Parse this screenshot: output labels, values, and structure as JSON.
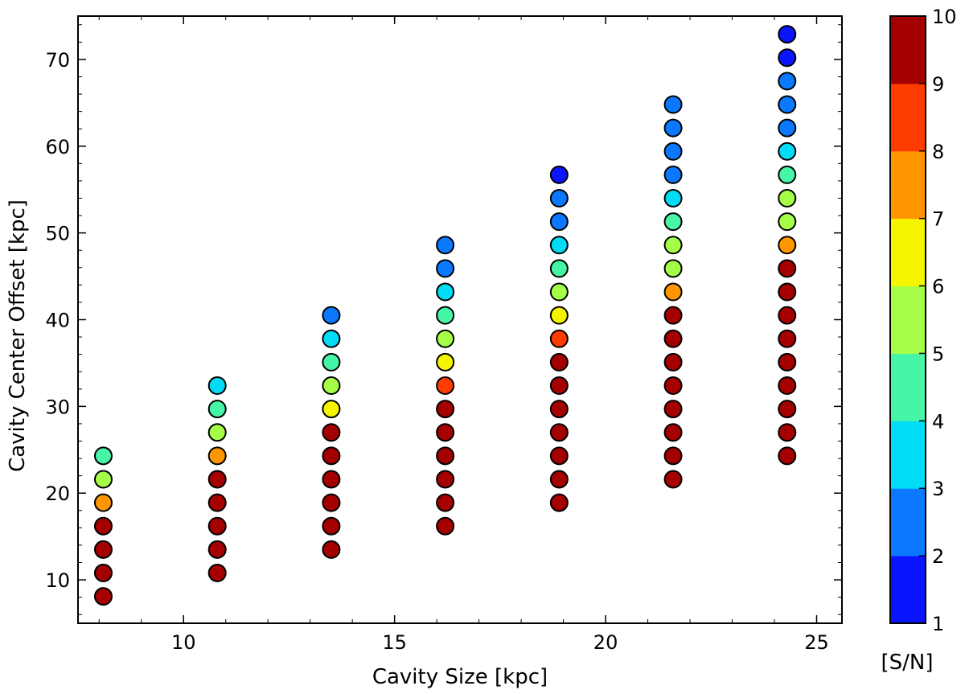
{
  "chart_data": {
    "type": "scatter",
    "xlabel": "Cavity Size [kpc]",
    "ylabel": "Cavity Center Offset [kpc]",
    "xlim": [
      7.5,
      25.6
    ],
    "ylim": [
      5,
      75
    ],
    "xticks": [
      10,
      15,
      20,
      25
    ],
    "yticks": [
      10,
      20,
      30,
      40,
      50,
      60,
      70
    ],
    "grid": false,
    "colorbar": {
      "label": "[S/N]",
      "range": [
        1,
        10
      ],
      "ticks": [
        1,
        2,
        3,
        4,
        5,
        6,
        7,
        8,
        9,
        10
      ],
      "colormap": "jet",
      "bands": [
        "#0a14ff",
        "#0a78ff",
        "#00dcf5",
        "#46f5a5",
        "#a5ff46",
        "#f5f500",
        "#ff9600",
        "#ff3c00",
        "#a50000"
      ]
    },
    "points": [
      {
        "x": 8.1,
        "y": 8.1,
        "sn": 10
      },
      {
        "x": 8.1,
        "y": 10.8,
        "sn": 10
      },
      {
        "x": 8.1,
        "y": 13.5,
        "sn": 10
      },
      {
        "x": 8.1,
        "y": 16.2,
        "sn": 10
      },
      {
        "x": 8.1,
        "y": 18.9,
        "sn": 7
      },
      {
        "x": 8.1,
        "y": 21.6,
        "sn": 5
      },
      {
        "x": 8.1,
        "y": 24.3,
        "sn": 4
      },
      {
        "x": 10.8,
        "y": 10.8,
        "sn": 10
      },
      {
        "x": 10.8,
        "y": 13.5,
        "sn": 10
      },
      {
        "x": 10.8,
        "y": 16.2,
        "sn": 10
      },
      {
        "x": 10.8,
        "y": 18.9,
        "sn": 10
      },
      {
        "x": 10.8,
        "y": 21.6,
        "sn": 10
      },
      {
        "x": 10.8,
        "y": 24.3,
        "sn": 7
      },
      {
        "x": 10.8,
        "y": 27.0,
        "sn": 5
      },
      {
        "x": 10.8,
        "y": 29.7,
        "sn": 4
      },
      {
        "x": 10.8,
        "y": 32.4,
        "sn": 3
      },
      {
        "x": 13.5,
        "y": 13.5,
        "sn": 10
      },
      {
        "x": 13.5,
        "y": 16.2,
        "sn": 10
      },
      {
        "x": 13.5,
        "y": 18.9,
        "sn": 10
      },
      {
        "x": 13.5,
        "y": 21.6,
        "sn": 10
      },
      {
        "x": 13.5,
        "y": 24.3,
        "sn": 10
      },
      {
        "x": 13.5,
        "y": 27.0,
        "sn": 9
      },
      {
        "x": 13.5,
        "y": 29.7,
        "sn": 6
      },
      {
        "x": 13.5,
        "y": 32.4,
        "sn": 5
      },
      {
        "x": 13.5,
        "y": 35.1,
        "sn": 4
      },
      {
        "x": 13.5,
        "y": 37.8,
        "sn": 3
      },
      {
        "x": 13.5,
        "y": 40.5,
        "sn": 2
      },
      {
        "x": 16.2,
        "y": 16.2,
        "sn": 10
      },
      {
        "x": 16.2,
        "y": 18.9,
        "sn": 10
      },
      {
        "x": 16.2,
        "y": 21.6,
        "sn": 10
      },
      {
        "x": 16.2,
        "y": 24.3,
        "sn": 10
      },
      {
        "x": 16.2,
        "y": 27.0,
        "sn": 10
      },
      {
        "x": 16.2,
        "y": 29.7,
        "sn": 10
      },
      {
        "x": 16.2,
        "y": 32.4,
        "sn": 8
      },
      {
        "x": 16.2,
        "y": 35.1,
        "sn": 6
      },
      {
        "x": 16.2,
        "y": 37.8,
        "sn": 5
      },
      {
        "x": 16.2,
        "y": 40.5,
        "sn": 4
      },
      {
        "x": 16.2,
        "y": 43.2,
        "sn": 3
      },
      {
        "x": 16.2,
        "y": 45.9,
        "sn": 2
      },
      {
        "x": 16.2,
        "y": 48.6,
        "sn": 2
      },
      {
        "x": 18.9,
        "y": 18.9,
        "sn": 10
      },
      {
        "x": 18.9,
        "y": 21.6,
        "sn": 10
      },
      {
        "x": 18.9,
        "y": 24.3,
        "sn": 10
      },
      {
        "x": 18.9,
        "y": 27.0,
        "sn": 10
      },
      {
        "x": 18.9,
        "y": 29.7,
        "sn": 10
      },
      {
        "x": 18.9,
        "y": 32.4,
        "sn": 10
      },
      {
        "x": 18.9,
        "y": 35.1,
        "sn": 10
      },
      {
        "x": 18.9,
        "y": 37.8,
        "sn": 8
      },
      {
        "x": 18.9,
        "y": 40.5,
        "sn": 6
      },
      {
        "x": 18.9,
        "y": 43.2,
        "sn": 5
      },
      {
        "x": 18.9,
        "y": 45.9,
        "sn": 4
      },
      {
        "x": 18.9,
        "y": 48.6,
        "sn": 3
      },
      {
        "x": 18.9,
        "y": 51.3,
        "sn": 2
      },
      {
        "x": 18.9,
        "y": 54.0,
        "sn": 2
      },
      {
        "x": 18.9,
        "y": 56.7,
        "sn": 1
      },
      {
        "x": 21.6,
        "y": 21.6,
        "sn": 10
      },
      {
        "x": 21.6,
        "y": 24.3,
        "sn": 10
      },
      {
        "x": 21.6,
        "y": 27.0,
        "sn": 10
      },
      {
        "x": 21.6,
        "y": 29.7,
        "sn": 10
      },
      {
        "x": 21.6,
        "y": 32.4,
        "sn": 10
      },
      {
        "x": 21.6,
        "y": 35.1,
        "sn": 10
      },
      {
        "x": 21.6,
        "y": 37.8,
        "sn": 10
      },
      {
        "x": 21.6,
        "y": 40.5,
        "sn": 9
      },
      {
        "x": 21.6,
        "y": 43.2,
        "sn": 7
      },
      {
        "x": 21.6,
        "y": 45.9,
        "sn": 5
      },
      {
        "x": 21.6,
        "y": 48.6,
        "sn": 5
      },
      {
        "x": 21.6,
        "y": 51.3,
        "sn": 4
      },
      {
        "x": 21.6,
        "y": 54.0,
        "sn": 3
      },
      {
        "x": 21.6,
        "y": 56.7,
        "sn": 2
      },
      {
        "x": 21.6,
        "y": 59.4,
        "sn": 2
      },
      {
        "x": 21.6,
        "y": 62.1,
        "sn": 2
      },
      {
        "x": 21.6,
        "y": 64.8,
        "sn": 2
      },
      {
        "x": 24.3,
        "y": 24.3,
        "sn": 10
      },
      {
        "x": 24.3,
        "y": 27.0,
        "sn": 10
      },
      {
        "x": 24.3,
        "y": 29.7,
        "sn": 10
      },
      {
        "x": 24.3,
        "y": 32.4,
        "sn": 10
      },
      {
        "x": 24.3,
        "y": 35.1,
        "sn": 10
      },
      {
        "x": 24.3,
        "y": 37.8,
        "sn": 10
      },
      {
        "x": 24.3,
        "y": 40.5,
        "sn": 10
      },
      {
        "x": 24.3,
        "y": 43.2,
        "sn": 10
      },
      {
        "x": 24.3,
        "y": 45.9,
        "sn": 9
      },
      {
        "x": 24.3,
        "y": 48.6,
        "sn": 7
      },
      {
        "x": 24.3,
        "y": 51.3,
        "sn": 5
      },
      {
        "x": 24.3,
        "y": 54.0,
        "sn": 5
      },
      {
        "x": 24.3,
        "y": 56.7,
        "sn": 4
      },
      {
        "x": 24.3,
        "y": 59.4,
        "sn": 3
      },
      {
        "x": 24.3,
        "y": 62.1,
        "sn": 2
      },
      {
        "x": 24.3,
        "y": 64.8,
        "sn": 2
      },
      {
        "x": 24.3,
        "y": 67.5,
        "sn": 2
      },
      {
        "x": 24.3,
        "y": 70.2,
        "sn": 1
      },
      {
        "x": 24.3,
        "y": 72.9,
        "sn": 1
      }
    ]
  }
}
